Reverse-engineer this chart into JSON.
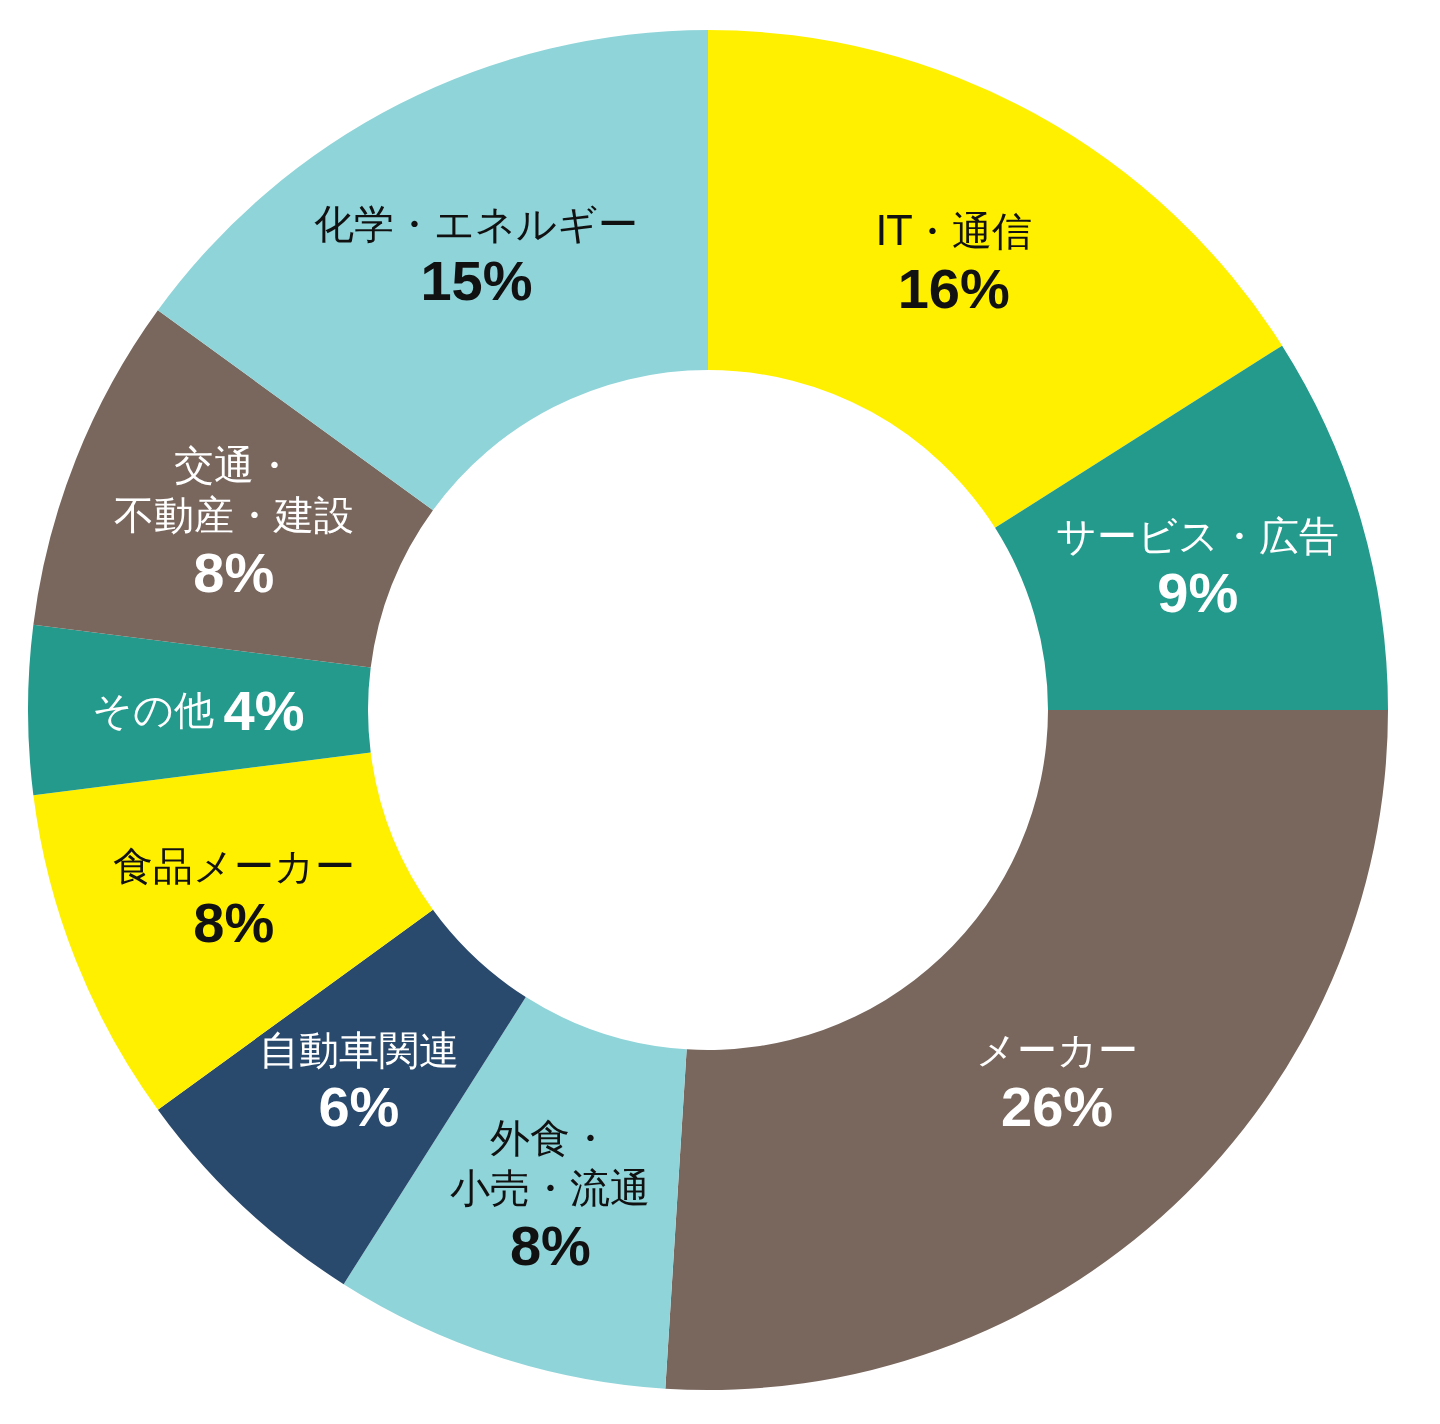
{
  "chart_data": {
    "type": "donut",
    "categories": [
      "IT・通信",
      "サービス・広告",
      "メーカー",
      "外食・小売・流通",
      "自動車関連",
      "食品メーカー",
      "その他",
      "交通・不動産・建設",
      "化学・エネルギー"
    ],
    "values": [
      16,
      9,
      26,
      8,
      6,
      8,
      4,
      8,
      15
    ],
    "colors": [
      "#fff000",
      "#239a8c",
      "#79675e",
      "#8fd4d9",
      "#2a4a6d",
      "#fff000",
      "#239a8c",
      "#79675e",
      "#8fd4d9"
    ],
    "value_labels": [
      "16%",
      "9%",
      "26%",
      "8%",
      "6%",
      "8%",
      "4%",
      "8%",
      "15%"
    ]
  }
}
